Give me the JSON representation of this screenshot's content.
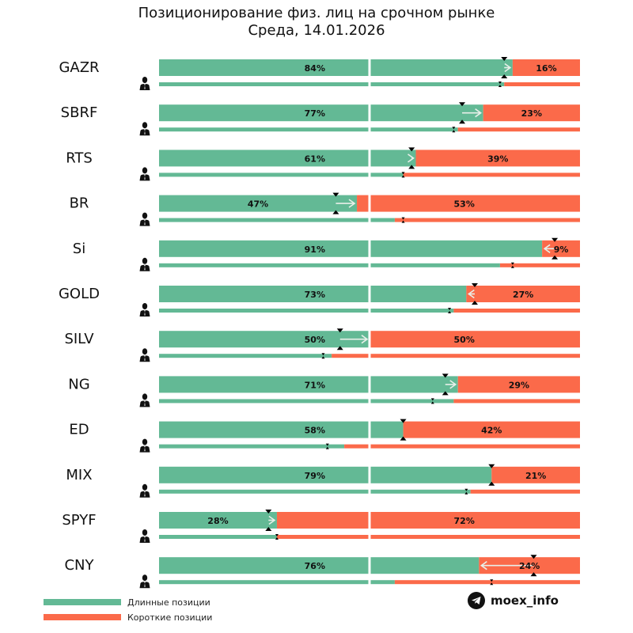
{
  "chart_data": {
    "type": "bar",
    "orientation": "horizontal-stacked-percent",
    "title": "Позиционирование физ. лиц на срочном рынке",
    "subtitle": "Среда, 14.01.2026",
    "xlim": [
      0,
      100
    ],
    "categories": [
      "GAZR",
      "SBRF",
      "RTS",
      "BR",
      "Si",
      "GOLD",
      "SILV",
      "NG",
      "ED",
      "MIX",
      "SPYF",
      "CNY"
    ],
    "series": [
      {
        "name": "Длинные позиции",
        "color": "#63b995",
        "values": [
          84,
          77,
          61,
          47,
          91,
          73,
          50,
          71,
          58,
          79,
          28,
          76
        ],
        "labels": [
          "84%",
          "77%",
          "61%",
          "47%",
          "91%",
          "73%",
          "50%",
          "71%",
          "58%",
          "79%",
          "28%",
          "76%"
        ]
      },
      {
        "name": "Короткие позиции",
        "color": "#fb6a4a",
        "values": [
          16,
          23,
          39,
          53,
          9,
          27,
          50,
          29,
          42,
          21,
          72,
          24
        ],
        "labels": [
          "16%",
          "23%",
          "39%",
          "53%",
          "9%",
          "27%",
          "50%",
          "29%",
          "42%",
          "21%",
          "72%",
          "24%"
        ]
      }
    ],
    "previous_long_share": [
      82,
      72,
      60,
      42,
      94,
      75,
      43,
      68,
      58,
      79,
      26,
      89
    ],
    "secondary_long_share": [
      82,
      71,
      58,
      56,
      81,
      70,
      41,
      70,
      44,
      74,
      28,
      56
    ],
    "secondary_marker": [
      81,
      70,
      58,
      58,
      84,
      69,
      39,
      65,
      40,
      73,
      28,
      79
    ]
  },
  "legend": {
    "long_label": "Длинные позиции",
    "short_label": "Короткие позиции"
  },
  "brand": {
    "icon": "telegram-icon",
    "text": "moex_info"
  },
  "colors": {
    "long": "#63b995",
    "short": "#fb6a4a",
    "marker": "#000000",
    "arrow": "#e8efe9"
  }
}
